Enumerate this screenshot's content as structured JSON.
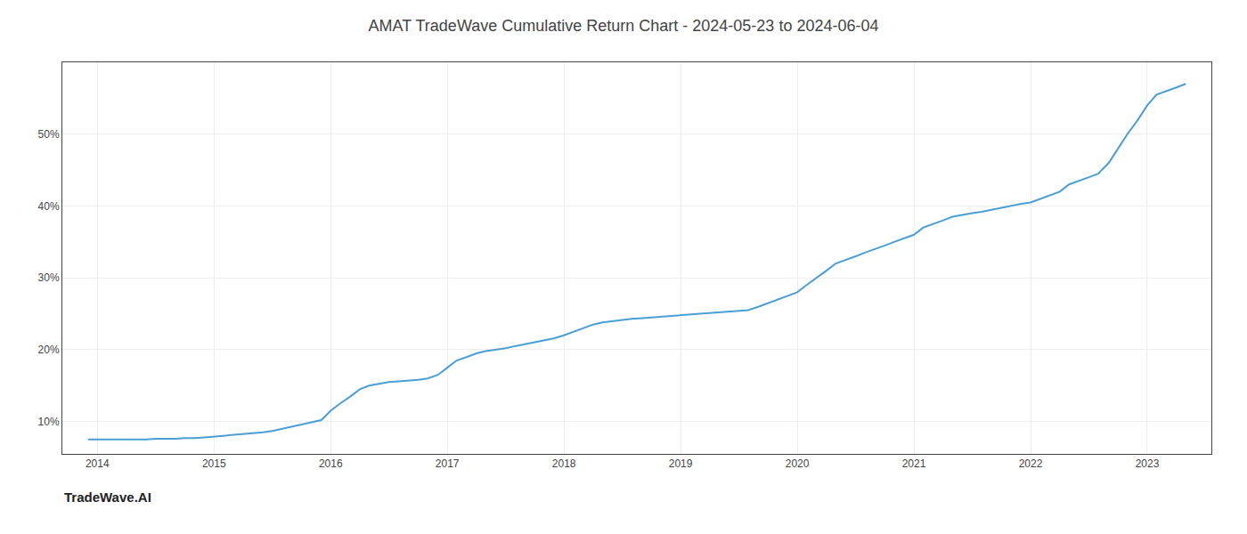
{
  "chart_data": {
    "type": "line",
    "title": "AMAT TradeWave Cumulative Return Chart - 2024-05-23 to 2024-06-04",
    "x": [
      2013.92,
      2014.0,
      2014.08,
      2014.17,
      2014.25,
      2014.33,
      2014.42,
      2014.5,
      2014.58,
      2014.67,
      2014.75,
      2014.83,
      2014.92,
      2015.0,
      2015.08,
      2015.17,
      2015.25,
      2015.33,
      2015.42,
      2015.5,
      2015.58,
      2015.67,
      2015.75,
      2015.83,
      2015.92,
      2016.0,
      2016.08,
      2016.17,
      2016.25,
      2016.33,
      2016.42,
      2016.5,
      2016.58,
      2016.67,
      2016.75,
      2016.83,
      2016.92,
      2017.0,
      2017.08,
      2017.17,
      2017.25,
      2017.33,
      2017.42,
      2017.5,
      2017.58,
      2017.67,
      2017.75,
      2017.83,
      2017.92,
      2018.0,
      2018.08,
      2018.17,
      2018.25,
      2018.33,
      2018.42,
      2018.5,
      2018.58,
      2018.67,
      2018.75,
      2018.83,
      2018.92,
      2019.0,
      2019.08,
      2019.17,
      2019.25,
      2019.33,
      2019.42,
      2019.5,
      2019.58,
      2019.67,
      2019.75,
      2019.83,
      2019.92,
      2020.0,
      2020.08,
      2020.17,
      2020.25,
      2020.33,
      2020.42,
      2020.5,
      2020.58,
      2020.67,
      2020.75,
      2020.83,
      2020.92,
      2021.0,
      2021.08,
      2021.17,
      2021.25,
      2021.33,
      2021.42,
      2021.5,
      2021.58,
      2021.67,
      2021.75,
      2021.83,
      2021.92,
      2022.0,
      2022.08,
      2022.17,
      2022.25,
      2022.33,
      2022.42,
      2022.5,
      2022.58,
      2022.67,
      2022.75,
      2022.83,
      2022.92,
      2023.0,
      2023.08,
      2023.17,
      2023.25,
      2023.33
    ],
    "values": [
      7.5,
      7.5,
      7.5,
      7.5,
      7.5,
      7.5,
      7.5,
      7.6,
      7.6,
      7.6,
      7.7,
      7.7,
      7.8,
      7.9,
      8.0,
      8.1,
      8.2,
      8.3,
      8.5,
      8.7,
      9.0,
      9.3,
      9.6,
      9.9,
      10.2,
      11.5,
      12.5,
      13.5,
      14.5,
      15.0,
      15.3,
      15.5,
      15.6,
      15.7,
      15.8,
      16.0,
      16.5,
      17.5,
      18.5,
      19.0,
      19.5,
      19.8,
      20.0,
      20.2,
      20.5,
      20.8,
      21.0,
      21.3,
      21.6,
      22.0,
      22.5,
      23.0,
      23.5,
      23.8,
      24.0,
      24.2,
      24.3,
      24.4,
      24.5,
      24.6,
      24.7,
      24.8,
      24.9,
      25.0,
      25.1,
      25.2,
      25.3,
      25.4,
      25.5,
      26.0,
      26.5,
      27.0,
      27.5,
      28.0,
      29.0,
      30.0,
      31.0,
      32.0,
      32.5,
      33.0,
      33.5,
      34.0,
      34.5,
      35.0,
      35.5,
      36.0,
      37.0,
      37.5,
      38.0,
      38.5,
      38.8,
      39.0,
      39.2,
      39.5,
      39.8,
      40.0,
      40.3,
      40.5,
      41.0,
      41.5,
      42.0,
      43.0,
      43.5,
      44.0,
      44.5,
      46.0,
      48.0,
      50.0,
      52.0,
      54.0,
      55.5,
      56.0,
      56.5,
      57.0
    ],
    "color": "#4a9fd4",
    "xlim": [
      2013.7,
      2023.55
    ],
    "ylim": [
      5.5,
      60
    ],
    "xticks": [
      2014,
      2015,
      2016,
      2017,
      2018,
      2019,
      2020,
      2021,
      2022,
      2023
    ],
    "yticks": [
      {
        "value": 10,
        "label": "10%"
      },
      {
        "value": 20,
        "label": "20%"
      },
      {
        "value": 30,
        "label": "30%"
      },
      {
        "value": 40,
        "label": "40%"
      },
      {
        "value": 50,
        "label": "50%"
      }
    ],
    "grid": true,
    "annotations": [
      {
        "text": "TradeWave.AI"
      }
    ]
  }
}
